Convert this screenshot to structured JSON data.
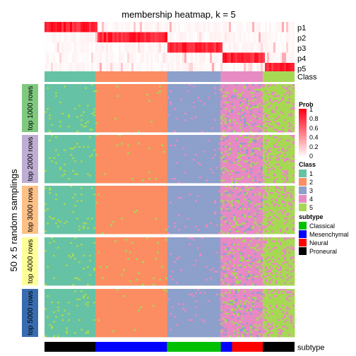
{
  "chart_data": {
    "type": "heatmap",
    "title": "membership heatmap, k = 5",
    "ylabel": "50 x 5 random samplings",
    "annotation_rows": [
      "p1",
      "p2",
      "p3",
      "p4",
      "p5"
    ],
    "class_label": "Class",
    "subtype_label": "subtype",
    "class_colors": {
      "1": "#66C2A5",
      "2": "#FC8D62",
      "3": "#8DA0CB",
      "4": "#E78AC3",
      "5": "#A6D854"
    },
    "class_blocks": [
      {
        "class": "1",
        "from": 0.0,
        "to": 0.205
      },
      {
        "class": "2",
        "from": 0.205,
        "to": 0.49
      },
      {
        "class": "3",
        "from": 0.49,
        "to": 0.705
      },
      {
        "class": "4",
        "from": 0.705,
        "to": 0.873
      },
      {
        "class": "5",
        "from": 0.873,
        "to": 1.0
      }
    ],
    "row_groups": [
      {
        "label": "top 1000 rows",
        "color": "#7FC97F"
      },
      {
        "label": "top 2000 rows",
        "color": "#BEAED4"
      },
      {
        "label": "top 3000 rows",
        "color": "#FDC086"
      },
      {
        "label": "top 4000 rows",
        "color": "#FFFF99"
      },
      {
        "label": "top 5000 rows",
        "color": "#386CB0"
      }
    ],
    "subtype_segments": [
      {
        "type": "Proneural",
        "from": 0.0,
        "to": 0.205
      },
      {
        "type": "Mesenchymal",
        "from": 0.205,
        "to": 0.49
      },
      {
        "type": "Classical",
        "from": 0.49,
        "to": 0.705
      },
      {
        "type": "Mesenchymal",
        "from": 0.705,
        "to": 0.75
      },
      {
        "type": "Neural",
        "from": 0.75,
        "to": 0.873
      },
      {
        "type": "Proneural",
        "from": 0.873,
        "to": 1.0
      }
    ],
    "prob_legend": {
      "title": "Prob",
      "ticks": [
        "1",
        "0.8",
        "0.6",
        "0.4",
        "0.2",
        "0"
      ]
    },
    "class_legend": {
      "title": "Class",
      "items": [
        "1",
        "2",
        "3",
        "4",
        "5"
      ]
    },
    "subtype_legend": {
      "title": "subtype",
      "items": [
        {
          "label": "Classical",
          "color": "#00C000"
        },
        {
          "label": "Mesenchymal",
          "color": "#0000FF"
        },
        {
          "label": "Neural",
          "color": "#FF0000"
        },
        {
          "label": "Proneural",
          "color": "#000000"
        }
      ]
    }
  }
}
